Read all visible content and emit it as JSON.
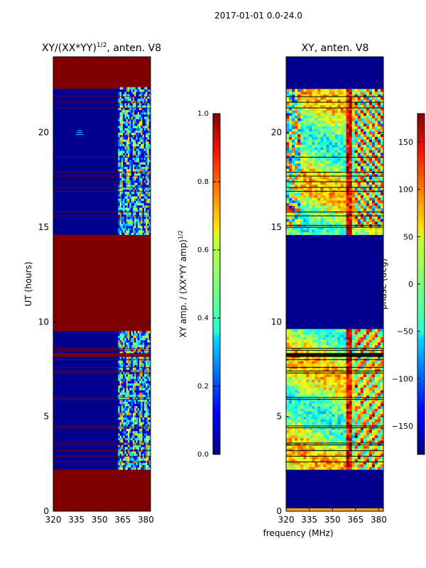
{
  "suptitle": "2017-01-01 0.0-24.0",
  "xlabel_shared": "frequency (MHz)",
  "colors": {
    "saturated": "#800000",
    "background_blue": "#00008f",
    "flag_line": "#000000"
  },
  "chart_data": [
    {
      "type": "heatmap",
      "title_main": "XY/(XX*YY)",
      "title_sup": "1/2",
      "title_tail": ", anten. V8",
      "ylabel": "UT (hours)",
      "xlim": [
        320,
        383
      ],
      "ylim": [
        0,
        24
      ],
      "xticks": [
        320,
        335,
        350,
        365,
        380
      ],
      "yticks": [
        0,
        5,
        10,
        15,
        20
      ],
      "data_time_ranges_hours": [
        [
          2.2,
          9.5
        ],
        [
          14.6,
          22.3
        ]
      ],
      "saturated_time_ranges_hours": [
        [
          0,
          2.2
        ],
        [
          9.5,
          14.6
        ],
        [
          22.3,
          24
        ]
      ],
      "active_band_mhz": [
        362,
        383
      ],
      "colorbar": {
        "label_main": "XY amp. / (XX*YY amp)",
        "label_sup": "1/2",
        "range": [
          0.0,
          1.0
        ],
        "ticks": [
          "0.0",
          "0.2",
          "0.4",
          "0.6",
          "0.8",
          "1.0"
        ]
      }
    },
    {
      "type": "heatmap",
      "title": "XY, anten. V8",
      "ylabel": "phase (deg)",
      "xlim": [
        320,
        383
      ],
      "ylim": [
        0,
        24
      ],
      "xticks": [
        320,
        335,
        350,
        365,
        380
      ],
      "yticks": [
        0,
        5,
        10,
        15,
        20
      ],
      "data_time_ranges_hours": [
        [
          2.2,
          9.5
        ],
        [
          14.6,
          22.3
        ]
      ],
      "colorbar": {
        "range": [
          -180,
          180
        ],
        "ticks": [
          "150",
          "100",
          "50",
          "0",
          "−50",
          "−100",
          "−150"
        ],
        "tick_values": [
          150,
          100,
          50,
          0,
          -50,
          -100,
          -150
        ]
      }
    }
  ]
}
